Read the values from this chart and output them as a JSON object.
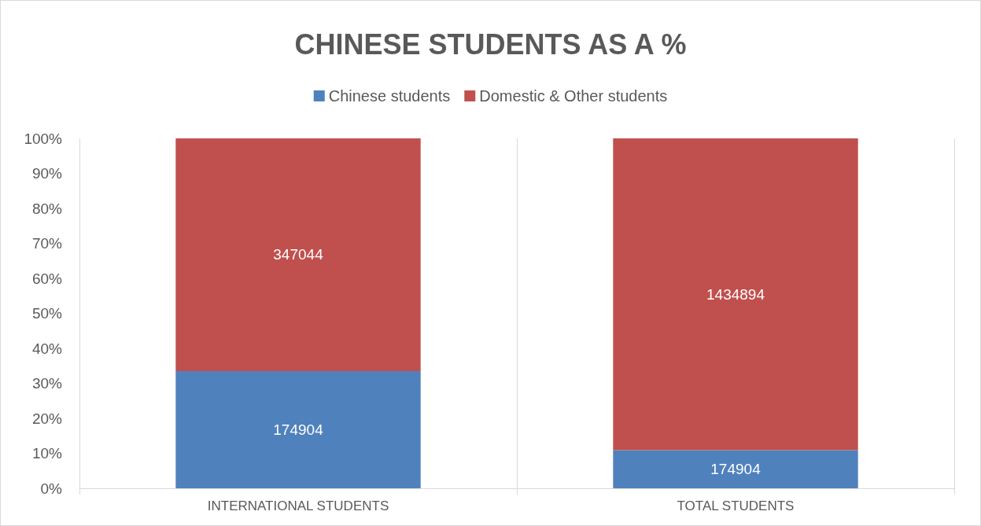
{
  "chart_data": {
    "type": "bar",
    "title": "CHINESE STUDENTS AS A %",
    "categories": [
      "INTERNATIONAL STUDENTS",
      "TOTAL STUDENTS"
    ],
    "stacked": true,
    "series": [
      {
        "name": "Chinese students",
        "color": "#4f81bd",
        "values": [
          33.5,
          10.9
        ]
      },
      {
        "name": "Domestic & Other students",
        "color": "#c0504d",
        "values": [
          66.5,
          89.1
        ]
      }
    ],
    "annotations": [
      "174904",
      "174904",
      "347044",
      "1434894"
    ],
    "ylim": [
      0,
      100
    ],
    "yticks": [
      {
        "value": 0,
        "label": "0%"
      },
      {
        "value": 10,
        "label": "10%"
      },
      {
        "value": 20,
        "label": "20%"
      },
      {
        "value": 30,
        "label": "30%"
      },
      {
        "value": 40,
        "label": "40%"
      },
      {
        "value": 50,
        "label": "50%"
      },
      {
        "value": 60,
        "label": "60%"
      },
      {
        "value": 70,
        "label": "70%"
      },
      {
        "value": 80,
        "label": "80%"
      },
      {
        "value": 90,
        "label": "90%"
      },
      {
        "value": 100,
        "label": "100%"
      }
    ],
    "grid": "x",
    "legend": "top"
  }
}
